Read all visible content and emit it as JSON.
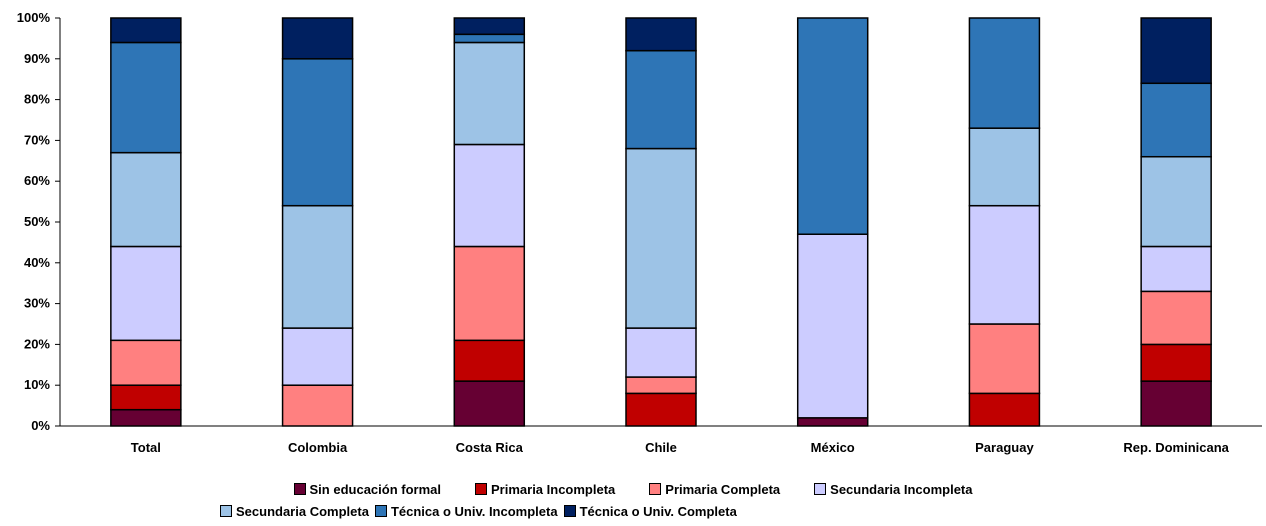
{
  "chart_data": {
    "type": "bar",
    "stacked": true,
    "orientation": "vertical",
    "categories": [
      "Total",
      "Colombia",
      "Costa Rica",
      "Chile",
      "México",
      "Paraguay",
      "Rep. Dominicana"
    ],
    "y_ticks": [
      "0%",
      "10%",
      "20%",
      "30%",
      "40%",
      "50%",
      "60%",
      "70%",
      "80%",
      "90%",
      "100%"
    ],
    "ylim": [
      0,
      100
    ],
    "grid": false,
    "legend_position": "bottom",
    "series": [
      {
        "name": "Sin educación formal",
        "color": "#660033",
        "values": [
          4,
          0,
          11,
          0,
          2,
          0,
          11
        ]
      },
      {
        "name": "Primaria Incompleta",
        "color": "#C00000",
        "values": [
          6,
          0,
          10,
          8,
          0,
          8,
          9
        ]
      },
      {
        "name": "Primaria Completa",
        "color": "#FF8080",
        "values": [
          11,
          10,
          23,
          4,
          0,
          17,
          13
        ]
      },
      {
        "name": "Secundaria Incompleta",
        "color": "#CCCCFF",
        "values": [
          23,
          14,
          25,
          12,
          45,
          29,
          11
        ]
      },
      {
        "name": "Secundaria Completa",
        "color": "#9DC3E6",
        "values": [
          23,
          30,
          25,
          44,
          0,
          19,
          22
        ]
      },
      {
        "name": "Técnica o Univ. Incompleta",
        "color": "#2E75B6",
        "values": [
          27,
          36,
          2,
          24,
          53,
          27,
          18
        ]
      },
      {
        "name": "Técnica o Univ. Completa",
        "color": "#002060",
        "values": [
          6,
          10,
          4,
          8,
          0,
          0,
          16
        ]
      }
    ]
  }
}
